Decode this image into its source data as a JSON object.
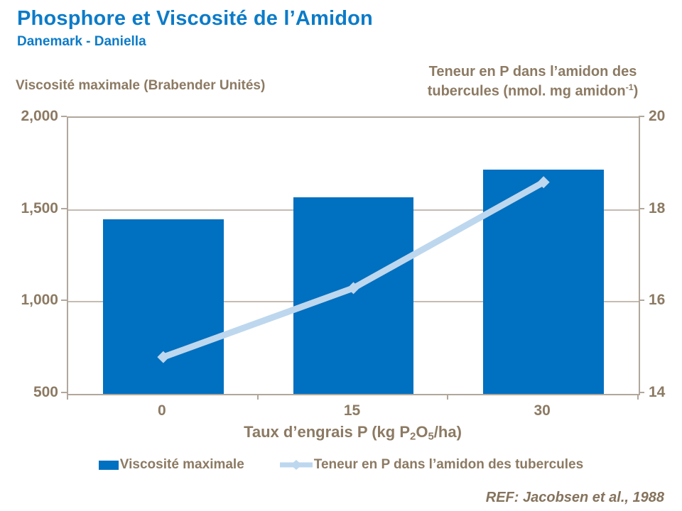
{
  "header": {
    "title": "Phosphore et Viscosité de l’Amidon",
    "subtitle": "Danemark - Daniella"
  },
  "colors": {
    "title_blue": "#0C7BC8",
    "bar_blue": "#0070C0",
    "line_blue": "#BDD7EE",
    "tan_text": "#8C7A63",
    "tan_dark": "#85735D",
    "axis_line": "#B1A79B",
    "gridline": "#C4BBB2"
  },
  "chart_data": {
    "type": "bar",
    "title": "Phosphore et Viscosité de l’Amidon",
    "subtitle": "Danemark - Daniella",
    "categories": [
      "0",
      "15",
      "30"
    ],
    "series": [
      {
        "name": "Viscosité maximale",
        "type": "bar",
        "axis": "left",
        "values": [
          1450,
          1570,
          1720
        ]
      },
      {
        "name": "Teneur en P dans l’amidon des tubercules",
        "type": "line",
        "axis": "right",
        "marker": "diamond",
        "values": [
          14.8,
          16.3,
          18.6
        ]
      }
    ],
    "left_axis": {
      "title": "Viscosité maximale (Brabender Unités)",
      "min": 500,
      "max": 2000,
      "ticks": [
        {
          "value": 2000,
          "label": "2,000"
        },
        {
          "value": 1500,
          "label": "1,500"
        },
        {
          "value": 1000,
          "label": "1,000"
        },
        {
          "value": 500,
          "label": "500"
        }
      ]
    },
    "right_axis": {
      "title_line1": "Teneur en P dans l’amidon des",
      "title_line2_prefix": "tubercules (nmol. mg amidon",
      "title_superscript": "-1",
      "title_close": ")",
      "min": 14,
      "max": 20,
      "ticks": [
        {
          "value": 20,
          "label": "20"
        },
        {
          "value": 18,
          "label": "18"
        },
        {
          "value": 16,
          "label": "16"
        },
        {
          "value": 14,
          "label": "14"
        }
      ]
    },
    "x_axis": {
      "title_part1": "Taux d’engrais P (kg P",
      "title_sub1": "2",
      "title_part2": "O",
      "title_sub2": "5",
      "title_part3": "/ha)",
      "labels": [
        "0",
        "15",
        "30"
      ]
    },
    "grid": "horizontal",
    "legend_position": "bottom"
  },
  "legend": {
    "items": [
      {
        "label": "Viscosité maximale",
        "swatch": "bar"
      },
      {
        "label": "Teneur en P dans l’amidon des tubercules",
        "swatch": "line-diamond"
      }
    ]
  },
  "footer": {
    "ref": "REF: Jacobsen et al., 1988"
  }
}
